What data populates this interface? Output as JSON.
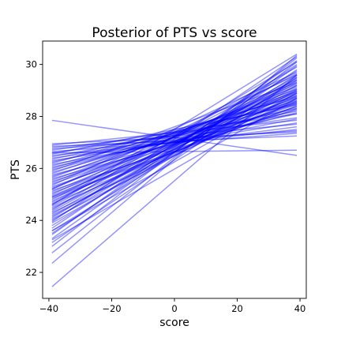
{
  "chart_data": {
    "type": "line",
    "title": "Posterior of PTS vs score",
    "xlabel": "score",
    "ylabel": "PTS",
    "xlim": [
      -42,
      42
    ],
    "ylim": [
      21.0,
      30.9
    ],
    "x_ticks": [
      -40,
      -20,
      0,
      20,
      40
    ],
    "x_tick_labels": [
      "−40",
      "−20",
      "0",
      "20",
      "40"
    ],
    "y_ticks": [
      22,
      24,
      26,
      28,
      30
    ],
    "y_tick_labels": [
      "22",
      "24",
      "26",
      "28",
      "30"
    ],
    "grid": false,
    "line_color": "#0000ff",
    "line_opacity": 0.42,
    "x_range": [
      -39,
      39
    ],
    "posterior_lines": [
      [
        21.45,
        29.6
      ],
      [
        22.35,
        30.35
      ],
      [
        22.75,
        30.1
      ],
      [
        23.0,
        30.25
      ],
      [
        23.15,
        29.5
      ],
      [
        23.3,
        29.95
      ],
      [
        23.45,
        30.15
      ],
      [
        23.5,
        29.8
      ],
      [
        23.6,
        29.4
      ],
      [
        23.7,
        30.0
      ],
      [
        23.8,
        29.6
      ],
      [
        23.9,
        29.2
      ],
      [
        23.95,
        30.3
      ],
      [
        24.0,
        29.5
      ],
      [
        24.05,
        28.9
      ],
      [
        24.1,
        29.75
      ],
      [
        24.15,
        29.3
      ],
      [
        24.2,
        29.0
      ],
      [
        24.25,
        29.55
      ],
      [
        24.3,
        28.7
      ],
      [
        24.35,
        29.45
      ],
      [
        24.4,
        30.1
      ],
      [
        24.45,
        29.05
      ],
      [
        24.5,
        28.8
      ],
      [
        24.55,
        29.35
      ],
      [
        24.6,
        29.9
      ],
      [
        24.65,
        28.6
      ],
      [
        24.7,
        29.2
      ],
      [
        24.75,
        28.95
      ],
      [
        24.8,
        29.65
      ],
      [
        24.85,
        28.4
      ],
      [
        24.9,
        29.1
      ],
      [
        24.95,
        28.75
      ],
      [
        25.0,
        29.4
      ],
      [
        25.05,
        28.55
      ],
      [
        25.1,
        29.0
      ],
      [
        25.15,
        28.3
      ],
      [
        25.2,
        29.25
      ],
      [
        25.25,
        28.85
      ],
      [
        25.3,
        28.5
      ],
      [
        25.35,
        29.7
      ],
      [
        25.4,
        28.65
      ],
      [
        25.45,
        29.15
      ],
      [
        25.5,
        28.45
      ],
      [
        25.55,
        28.9
      ],
      [
        25.6,
        28.25
      ],
      [
        25.65,
        29.05
      ],
      [
        25.7,
        28.7
      ],
      [
        25.75,
        28.15
      ],
      [
        25.8,
        28.95
      ],
      [
        25.85,
        28.55
      ],
      [
        25.9,
        29.3
      ],
      [
        25.95,
        28.35
      ],
      [
        26.0,
        28.8
      ],
      [
        26.05,
        28.1
      ],
      [
        26.1,
        28.6
      ],
      [
        26.15,
        27.9
      ],
      [
        26.2,
        28.75
      ],
      [
        26.25,
        28.3
      ],
      [
        26.3,
        27.75
      ],
      [
        26.35,
        28.5
      ],
      [
        26.4,
        27.6
      ],
      [
        26.45,
        28.2
      ],
      [
        26.5,
        27.5
      ],
      [
        26.55,
        28.45
      ],
      [
        26.6,
        27.95
      ],
      [
        26.65,
        27.35
      ],
      [
        26.7,
        28.1
      ],
      [
        26.75,
        27.45
      ],
      [
        26.8,
        27.7
      ],
      [
        26.85,
        27.25
      ],
      [
        26.9,
        27.85
      ],
      [
        26.95,
        27.4
      ],
      [
        27.85,
        26.5
      ],
      [
        26.6,
        26.7
      ],
      [
        24.9,
        28.4
      ],
      [
        23.6,
        28.9
      ],
      [
        25.2,
        29.6
      ],
      [
        23.25,
        28.7
      ],
      [
        24.6,
        30.4
      ]
    ]
  }
}
